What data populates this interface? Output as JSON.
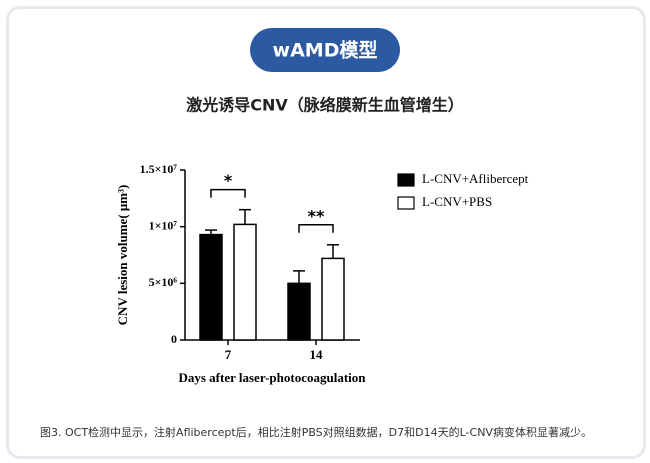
{
  "header": {
    "badge": "wAMD模型",
    "subtitle": "激光诱导CNV（脉络膜新生血管增生）"
  },
  "chart_data": {
    "type": "bar",
    "x_label": "Days after laser-photocoagulation",
    "y_label": "CNV lesion volume( μm³)",
    "categories": [
      "7",
      "14"
    ],
    "series": [
      {
        "name": "L-CNV+Aflibercept",
        "color": "#000000",
        "values": [
          9300000,
          5000000
        ],
        "errors": [
          400000,
          1100000
        ]
      },
      {
        "name": "L-CNV+PBS",
        "color": "#ffffff",
        "values": [
          10200000,
          7200000
        ],
        "errors": [
          1300000,
          1200000
        ]
      }
    ],
    "significance": [
      "*",
      "**"
    ],
    "ylim": [
      0,
      15000000
    ],
    "yticks": [
      0,
      {
        "value": 5000000,
        "label": "5×10⁶"
      },
      {
        "value": 10000000,
        "label": "1×10⁷"
      },
      {
        "value": 15000000,
        "label": "1.5×10⁷"
      }
    ],
    "legend": "upper right"
  },
  "caption": "图3. OCT检测中显示，注射Aflibercept后，相比注射PBS对照组数据，D7和D14天的L-CNV病变体积显著减少。"
}
